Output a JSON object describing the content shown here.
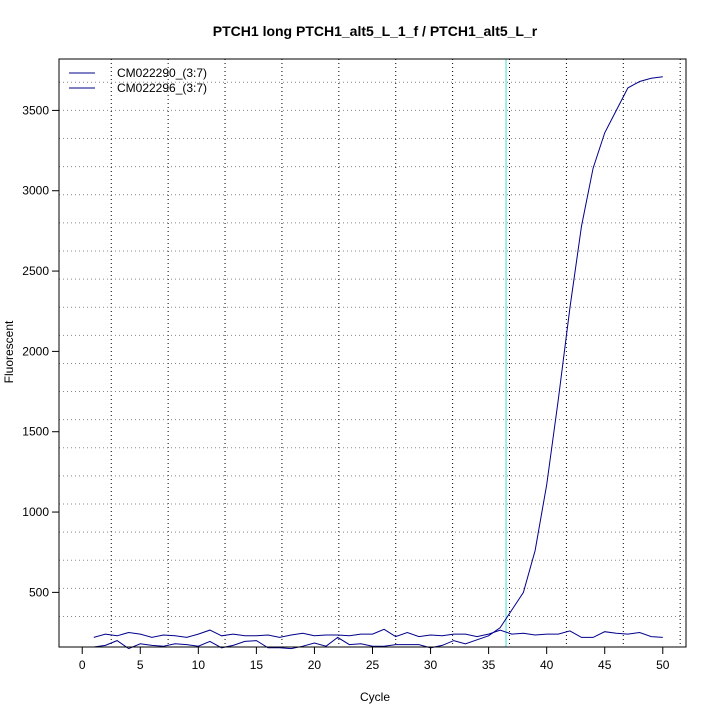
{
  "chart_data": {
    "type": "line",
    "title": "PTCH1 long PTCH1_alt5_L_1_f / PTCH1_alt5_L_r",
    "xlabel": "Cycle",
    "ylabel": "Fluorescent",
    "xlim": [
      -2,
      52
    ],
    "ylim": [
      160,
      3820
    ],
    "x_ticks": [
      0,
      5,
      10,
      15,
      20,
      25,
      30,
      35,
      40,
      45,
      50
    ],
    "y_ticks": [
      500,
      1000,
      1500,
      2000,
      2500,
      3000,
      3500
    ],
    "grid": true,
    "legend_position": "top-left",
    "threshold_cycle": 36.5,
    "threshold_color": "#40e0d0",
    "series_color": "#00008b",
    "x": [
      1,
      2,
      3,
      4,
      5,
      6,
      7,
      8,
      9,
      10,
      11,
      12,
      13,
      14,
      15,
      16,
      17,
      18,
      19,
      20,
      21,
      22,
      23,
      24,
      25,
      26,
      27,
      28,
      29,
      30,
      31,
      32,
      33,
      34,
      35,
      36,
      37,
      38,
      39,
      40,
      41,
      42,
      43,
      44,
      45,
      46,
      47,
      48,
      49,
      50
    ],
    "series": [
      {
        "name": "CM022290_(3:7)",
        "values": [
          220,
          240,
          230,
          250,
          240,
          220,
          235,
          230,
          220,
          240,
          265,
          230,
          240,
          230,
          230,
          235,
          220,
          235,
          245,
          230,
          235,
          235,
          230,
          240,
          240,
          270,
          225,
          250,
          225,
          235,
          230,
          240,
          240,
          225,
          240,
          265,
          240,
          245,
          235,
          240,
          240,
          260,
          220,
          220,
          255,
          245,
          240,
          250,
          225,
          220
        ]
      },
      {
        "name": "CM022296_(3:7)",
        "values": [
          160,
          170,
          200,
          150,
          180,
          170,
          165,
          180,
          175,
          165,
          195,
          155,
          170,
          195,
          200,
          155,
          155,
          150,
          165,
          185,
          165,
          220,
          175,
          180,
          165,
          165,
          175,
          175,
          175,
          155,
          170,
          200,
          180,
          205,
          230,
          280,
          390,
          500,
          760,
          1170,
          1700,
          2270,
          2780,
          3140,
          3360,
          3500,
          3640,
          3680,
          3700,
          3710
        ]
      }
    ]
  }
}
